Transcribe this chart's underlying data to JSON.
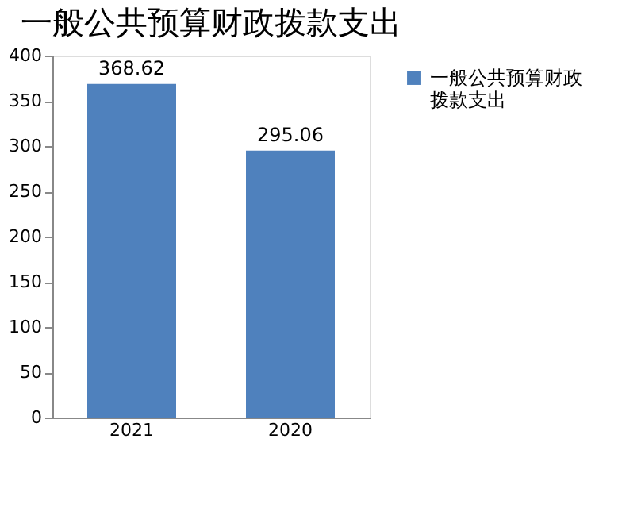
{
  "chart_data": {
    "type": "bar",
    "title": "一般公共预算财政拨款支出",
    "categories": [
      "2021",
      "2020"
    ],
    "series": [
      {
        "name": "一般公共预算财政拨款支出",
        "color": "#4f81bd",
        "values": [
          368.62,
          295.06
        ]
      }
    ],
    "ylim": [
      0,
      400
    ],
    "yticks": [
      0,
      50,
      100,
      150,
      200,
      250,
      300,
      350,
      400
    ],
    "data_labels": true,
    "grid": false,
    "legend": "right"
  }
}
